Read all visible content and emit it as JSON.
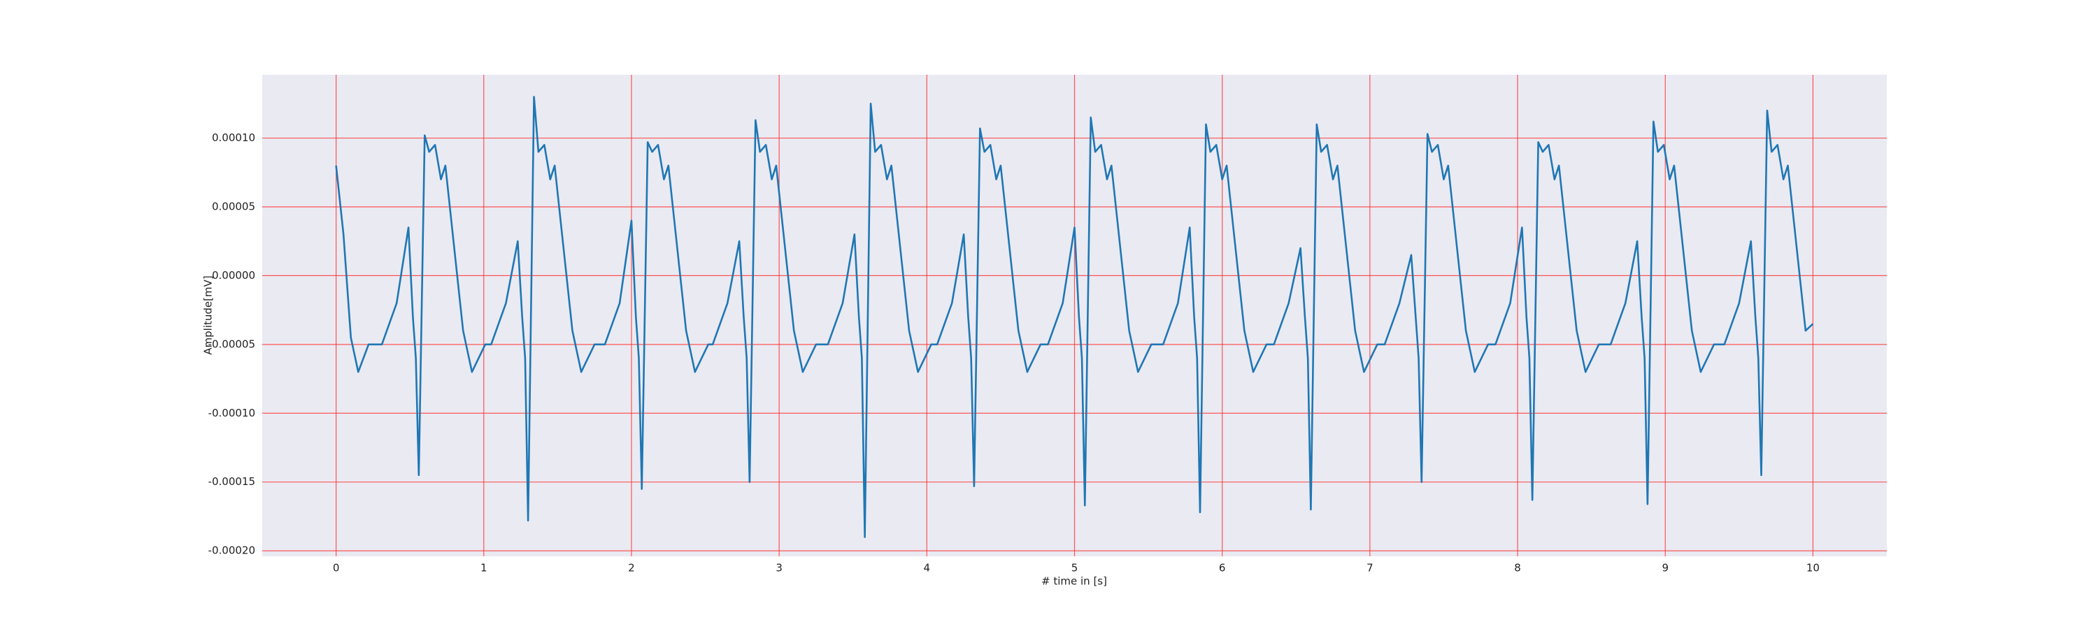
{
  "chart_data": {
    "type": "line",
    "x_label": "# time in [s]",
    "y_label": "Amplitude[mV]",
    "color": "#1f77b4",
    "grid": true,
    "grid_color": "#ff3030",
    "background": "#eaeaf2",
    "xlim": [
      -0.5,
      10.5
    ],
    "xticks": [
      0,
      1,
      2,
      3,
      4,
      5,
      6,
      7,
      8,
      9,
      10
    ],
    "ylim": [
      -0.000204,
      0.000146
    ],
    "yticks": [
      {
        "value": -0.0002,
        "label": "-0.00020"
      },
      {
        "value": -0.00015,
        "label": "-0.00015"
      },
      {
        "value": -0.0001,
        "label": "-0.00010"
      },
      {
        "value": -5e-05,
        "label": "-0.00005"
      },
      {
        "value": 0,
        "label": "0.00000"
      },
      {
        "value": 5e-05,
        "label": "0.00005"
      },
      {
        "value": 0.0001,
        "label": "0.00010"
      }
    ],
    "x": [
      0,
      0.05,
      0.1,
      0.15,
      0.22,
      0.31,
      0.41,
      0.49,
      0.52,
      0.54,
      0.56,
      0.6,
      0.63,
      0.67,
      0.71,
      0.74,
      0.78,
      0.86,
      0.92,
      1.01,
      1.05,
      1.15,
      1.23,
      1.26,
      1.28,
      1.3,
      1.34,
      1.37,
      1.41,
      1.45,
      1.48,
      1.52,
      1.6,
      1.66,
      1.75,
      1.82,
      1.92,
      2.0,
      2.03,
      2.05,
      2.07,
      2.11,
      2.14,
      2.18,
      2.22,
      2.25,
      2.29,
      2.37,
      2.43,
      2.52,
      2.55,
      2.65,
      2.73,
      2.76,
      2.78,
      2.8,
      2.84,
      2.87,
      2.91,
      2.95,
      2.98,
      3.02,
      3.1,
      3.16,
      3.25,
      3.33,
      3.43,
      3.51,
      3.54,
      3.56,
      3.58,
      3.62,
      3.65,
      3.69,
      3.73,
      3.76,
      3.8,
      3.88,
      3.94,
      4.03,
      4.07,
      4.17,
      4.25,
      4.28,
      4.3,
      4.32,
      4.36,
      4.39,
      4.43,
      4.47,
      4.5,
      4.54,
      4.62,
      4.68,
      4.77,
      4.82,
      4.92,
      5.0,
      5.03,
      5.05,
      5.07,
      5.11,
      5.14,
      5.18,
      5.22,
      5.25,
      5.29,
      5.37,
      5.43,
      5.52,
      5.6,
      5.7,
      5.78,
      5.81,
      5.83,
      5.85,
      5.89,
      5.92,
      5.96,
      6.0,
      6.03,
      6.07,
      6.15,
      6.21,
      6.3,
      6.35,
      6.45,
      6.53,
      6.56,
      6.58,
      6.6,
      6.64,
      6.67,
      6.71,
      6.75,
      6.78,
      6.82,
      6.9,
      6.96,
      7.05,
      7.1,
      7.2,
      7.28,
      7.31,
      7.33,
      7.35,
      7.39,
      7.42,
      7.46,
      7.5,
      7.53,
      7.57,
      7.65,
      7.71,
      7.8,
      7.85,
      7.95,
      8.03,
      8.06,
      8.08,
      8.1,
      8.14,
      8.17,
      8.21,
      8.25,
      8.28,
      8.32,
      8.4,
      8.46,
      8.55,
      8.63,
      8.73,
      8.81,
      8.84,
      8.86,
      8.88,
      8.92,
      8.95,
      8.99,
      9.03,
      9.06,
      9.1,
      9.18,
      9.24,
      9.33,
      9.4,
      9.5,
      9.58,
      9.61,
      9.63,
      9.65,
      9.69,
      9.72,
      9.76,
      9.8,
      9.83,
      9.87,
      9.95,
      10.0
    ],
    "values": [
      8e-05,
      3e-05,
      -4.5e-05,
      -7e-05,
      -5e-05,
      -5e-05,
      -2e-05,
      3.5e-05,
      -3e-05,
      -6e-05,
      -0.000145,
      0.000102,
      9e-05,
      9.5e-05,
      7e-05,
      8e-05,
      4e-05,
      -4e-05,
      -7e-05,
      -5e-05,
      -5e-05,
      -2e-05,
      2.5e-05,
      -3e-05,
      -6e-05,
      -0.000178,
      0.00013,
      9e-05,
      9.5e-05,
      7e-05,
      8e-05,
      4e-05,
      -4e-05,
      -7e-05,
      -5e-05,
      -5e-05,
      -2e-05,
      4e-05,
      -3e-05,
      -6e-05,
      -0.000155,
      9.7e-05,
      9e-05,
      9.5e-05,
      7e-05,
      8e-05,
      4e-05,
      -4e-05,
      -7e-05,
      -5e-05,
      -5e-05,
      -2e-05,
      2.5e-05,
      -3e-05,
      -6e-05,
      -0.00015,
      0.000113,
      9e-05,
      9.5e-05,
      7e-05,
      8e-05,
      4e-05,
      -4e-05,
      -7e-05,
      -5e-05,
      -5e-05,
      -2e-05,
      3e-05,
      -3e-05,
      -6e-05,
      -0.00019,
      0.000125,
      9e-05,
      9.5e-05,
      7e-05,
      8e-05,
      4e-05,
      -4e-05,
      -7e-05,
      -5e-05,
      -5e-05,
      -2e-05,
      3e-05,
      -3e-05,
      -6e-05,
      -0.000153,
      0.000107,
      9e-05,
      9.5e-05,
      7e-05,
      8e-05,
      4e-05,
      -4e-05,
      -7e-05,
      -5e-05,
      -5e-05,
      -2e-05,
      3.5e-05,
      -3e-05,
      -6e-05,
      -0.000167,
      0.000115,
      9e-05,
      9.5e-05,
      7e-05,
      8e-05,
      4e-05,
      -4e-05,
      -7e-05,
      -5e-05,
      -5e-05,
      -2e-05,
      3.5e-05,
      -3e-05,
      -6e-05,
      -0.000172,
      0.00011,
      9e-05,
      9.5e-05,
      7e-05,
      8e-05,
      4e-05,
      -4e-05,
      -7e-05,
      -5e-05,
      -5e-05,
      -2e-05,
      2e-05,
      -3e-05,
      -6e-05,
      -0.00017,
      0.00011,
      9e-05,
      9.5e-05,
      7e-05,
      8e-05,
      4e-05,
      -4e-05,
      -7e-05,
      -5e-05,
      -5e-05,
      -2e-05,
      1.5e-05,
      -3e-05,
      -6e-05,
      -0.00015,
      0.000103,
      9e-05,
      9.5e-05,
      7e-05,
      8e-05,
      4e-05,
      -4e-05,
      -7e-05,
      -5e-05,
      -5e-05,
      -2e-05,
      3.5e-05,
      -3e-05,
      -6e-05,
      -0.000163,
      9.7e-05,
      9e-05,
      9.5e-05,
      7e-05,
      8e-05,
      4e-05,
      -4e-05,
      -7e-05,
      -5e-05,
      -5e-05,
      -2e-05,
      2.5e-05,
      -3e-05,
      -6e-05,
      -0.000166,
      0.000112,
      9e-05,
      9.5e-05,
      7e-05,
      8e-05,
      4e-05,
      -4e-05,
      -7e-05,
      -5e-05,
      -5e-05,
      -2e-05,
      2.5e-05,
      -3e-05,
      -6e-05,
      -0.000145,
      0.00012,
      9e-05,
      9.5e-05,
      7e-05,
      8e-05,
      4e-05,
      -4e-05,
      -3.5e-05
    ]
  }
}
